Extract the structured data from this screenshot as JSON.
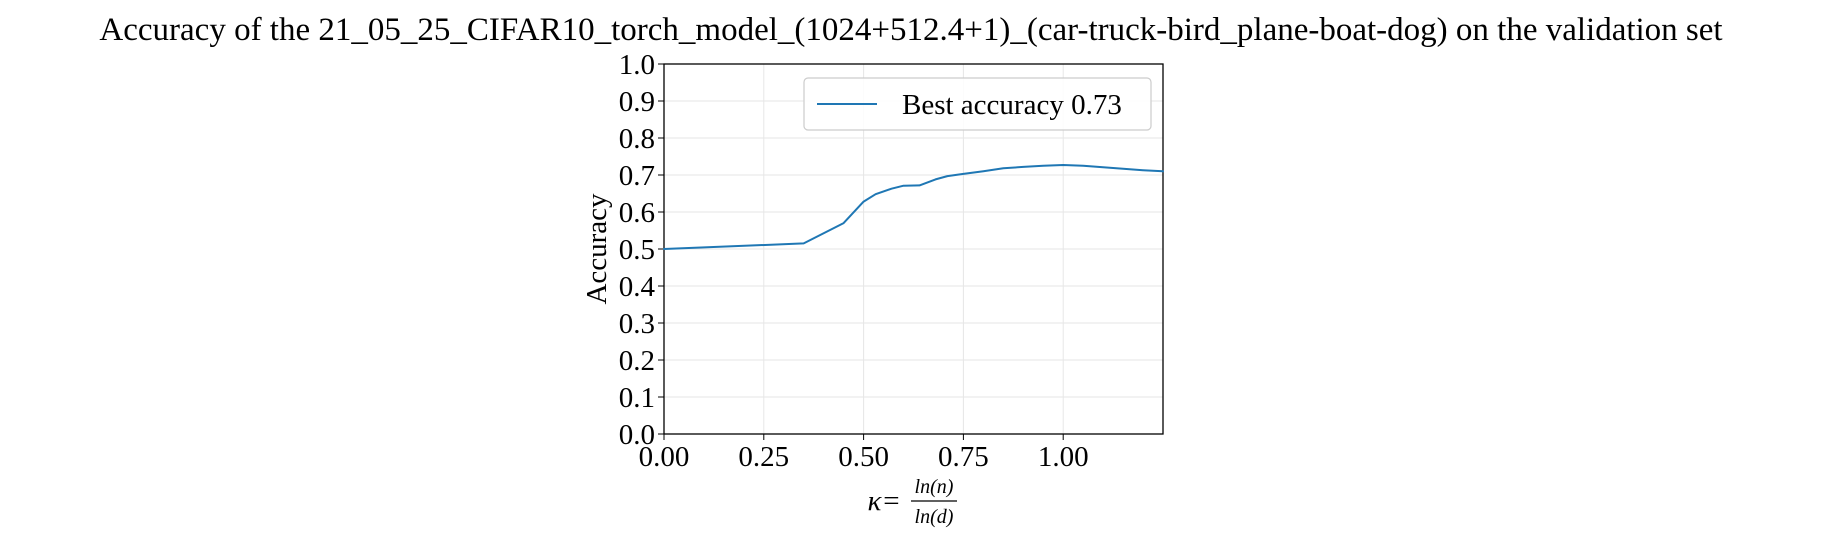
{
  "chart_data": {
    "type": "line",
    "title": "Accuracy of the 21_05_25_CIFAR10_torch_model_(1024+512.4+1)_(car-truck-bird_plane-boat-dog) on the validation set",
    "xlabel": {
      "prefix": "κ=",
      "numerator": "ln(n)",
      "denominator": "ln(d)"
    },
    "ylabel": "Accuracy",
    "xlim": [
      0.0,
      1.25
    ],
    "ylim": [
      0.0,
      1.0
    ],
    "x_ticks": [
      0.0,
      0.25,
      0.5,
      0.75,
      1.0
    ],
    "x_tick_labels": [
      "0.00",
      "0.25",
      "0.50",
      "0.75",
      "1.00"
    ],
    "y_ticks": [
      0.0,
      0.1,
      0.2,
      0.3,
      0.4,
      0.5,
      0.6,
      0.7,
      0.8,
      0.9,
      1.0
    ],
    "y_tick_labels": [
      "0.0",
      "0.1",
      "0.2",
      "0.3",
      "0.4",
      "0.5",
      "0.6",
      "0.7",
      "0.8",
      "0.9",
      "1.0"
    ],
    "grid": true,
    "legend_position": "top-right",
    "series": [
      {
        "name": "Best accuracy 0.73",
        "color": "#1f77b4",
        "x": [
          0.0,
          0.35,
          0.45,
          0.5,
          0.53,
          0.57,
          0.6,
          0.64,
          0.68,
          0.71,
          0.75,
          0.8,
          0.85,
          0.9,
          0.95,
          1.0,
          1.05,
          1.1,
          1.15,
          1.2,
          1.25
        ],
        "y": [
          0.5,
          0.515,
          0.57,
          0.628,
          0.648,
          0.663,
          0.671,
          0.672,
          0.688,
          0.697,
          0.703,
          0.71,
          0.718,
          0.722,
          0.725,
          0.727,
          0.725,
          0.721,
          0.717,
          0.713,
          0.71
        ]
      }
    ]
  }
}
